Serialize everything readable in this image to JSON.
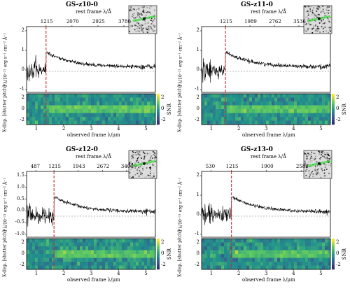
{
  "figure": {
    "panels": [
      {
        "title": "GS-z10-0",
        "rest_frame_label": "rest frame λ/Å",
        "rest_ticks": [
          "1215",
          "2070",
          "2925",
          "3780"
        ],
        "observed_label": "observed frame λ/μm",
        "observed_ticks": [
          "1",
          "2",
          "3",
          "4",
          "5"
        ],
        "flux_label": "Fλ/10⁻²¹ erg s⁻¹ cm⁻² Å⁻¹",
        "flux_ticks": [
          "2",
          "1",
          "0",
          "-1"
        ],
        "xdisp_label": "X-disp. [shutter pitch]",
        "snr_label": "SNR",
        "snr_ticks": [
          "2",
          "0",
          "-2"
        ],
        "xdisp_ticks": [
          "2",
          "0",
          "-2"
        ],
        "lya_obs_um": 1.36
      },
      {
        "title": "GS-z11-0",
        "rest_frame_label": "rest frame λ/Å",
        "rest_ticks": [
          "1215",
          "1989",
          "2762",
          "3536"
        ],
        "observed_label": "observed frame λ/μm",
        "observed_ticks": [
          "1",
          "2",
          "3",
          "4",
          "5"
        ],
        "flux_label": "Fλ/10⁻²¹ erg s⁻¹ cm⁻² Å⁻¹",
        "flux_ticks": [
          "2",
          "1",
          "0",
          "-1"
        ],
        "xdisp_label": "X-disp. [shutter pitch]",
        "snr_label": "SNR",
        "snr_ticks": [
          "2",
          "0",
          "-2"
        ],
        "xdisp_ticks": [
          "2",
          "0",
          "-2"
        ],
        "lya_obs_um": 1.52
      },
      {
        "title": "GS-z12-0",
        "rest_frame_label": "rest frame λ/Å",
        "rest_ticks": [
          "487",
          "1215",
          "1943",
          "2672",
          "3400"
        ],
        "observed_label": "observed frame λ/μm",
        "observed_ticks": [
          "1",
          "2",
          "3",
          "4",
          "5"
        ],
        "flux_label": "Fλ/10⁻²¹ erg s⁻¹ cm⁻² Å⁻¹",
        "flux_ticks": [
          "1.5",
          "1.0",
          "0.5",
          "0.0",
          "-0.5",
          "-1.0"
        ],
        "xdisp_label": "X-disp. [shutter pitch]",
        "snr_label": "SNR",
        "snr_ticks": [
          "2",
          "0",
          "-2"
        ],
        "xdisp_ticks": [
          "2",
          "0",
          "-2"
        ],
        "lya_obs_um": 1.65
      },
      {
        "title": "GS-z13-0",
        "rest_frame_label": "rest frame λ/Å",
        "rest_ticks": [
          "530",
          "1215",
          "1900",
          "2586"
        ],
        "observed_label": "observed frame λ/μm",
        "observed_ticks": [
          "1",
          "2",
          "3",
          "4",
          "5"
        ],
        "flux_label": "Fλ/10⁻²¹ erg s⁻¹ cm⁻² Å⁻¹",
        "flux_ticks": [
          "2",
          "1",
          "0",
          "-1"
        ],
        "xdisp_label": "X-disp. [shutter pitch]",
        "snr_label": "SNR",
        "snr_ticks": [
          "2",
          "0",
          "-2"
        ],
        "xdisp_ticks": [
          "2",
          "0",
          "-2"
        ],
        "lya_obs_um": 1.74
      }
    ],
    "colors": {
      "spectrum": "#000000",
      "lya_line": "#d62728",
      "snr_low": "#2c1a5e",
      "snr_mid": "#1f9e89",
      "snr_high": "#fde725",
      "trace": "#3adb3a"
    }
  }
}
